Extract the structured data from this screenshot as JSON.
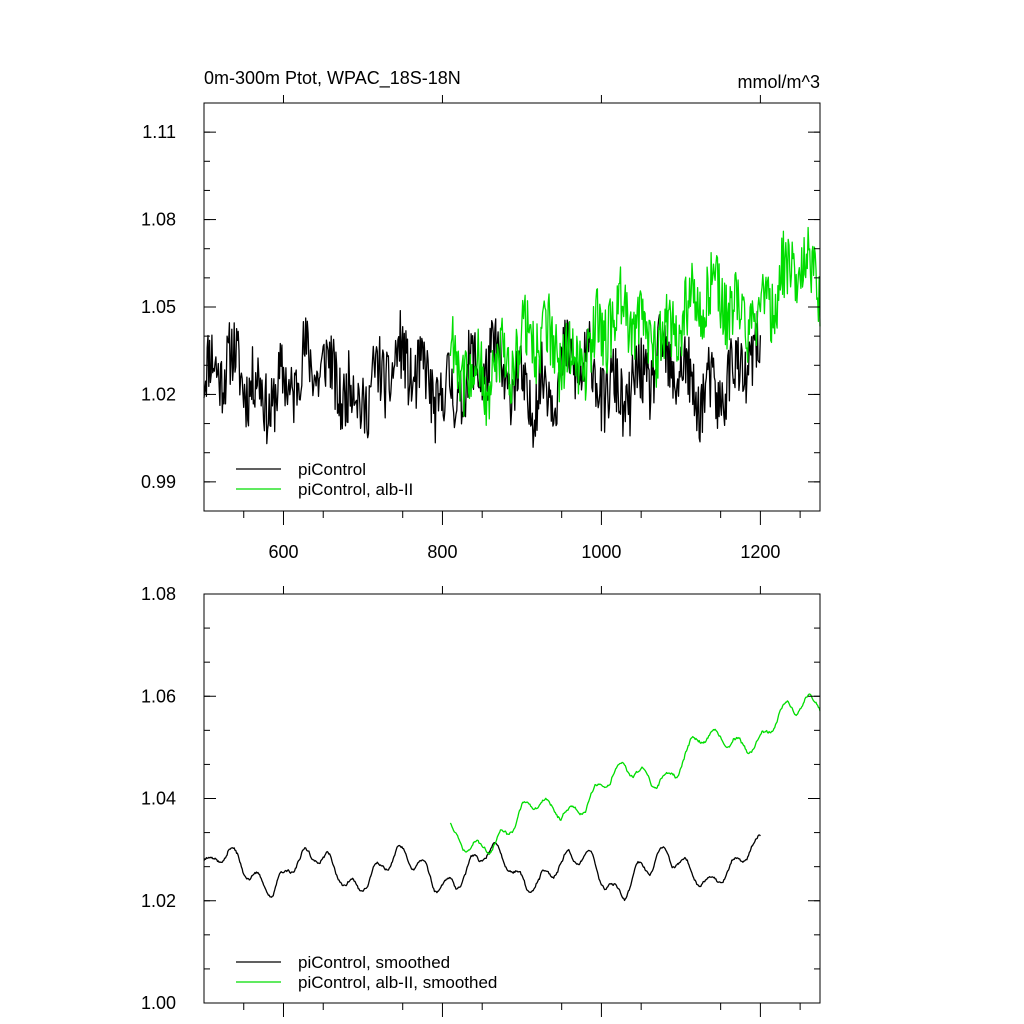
{
  "chart_data": [
    {
      "type": "line",
      "title": "0m-300m Ptot, WPAC_18S-18N",
      "units": "mmol/m^3",
      "xlim": [
        500,
        1275
      ],
      "ylim": [
        0.98,
        1.12
      ],
      "x_ticks": [
        600,
        800,
        1000,
        1200
      ],
      "y_ticks": [
        0.99,
        1.02,
        1.05,
        1.08,
        1.11
      ],
      "y_tick_labels": [
        "0.99",
        "1.02",
        "1.05",
        "1.08",
        "1.11"
      ],
      "legend_position": "bottom-left",
      "legend": [
        "piControl",
        "piControl, alb-II"
      ],
      "series": [
        {
          "name": "piControl",
          "color": "#000000",
          "x_start": 500,
          "x_end": 1200,
          "mean": 1.025,
          "amplitude": 0.012,
          "trend": 0.0,
          "noise": 0.012
        },
        {
          "name": "piControl, alb-II",
          "color": "#00dd00",
          "x_start": 810,
          "x_end": 1275,
          "mean": 1.028,
          "amplitude": 0.012,
          "trend": 0.03,
          "noise": 0.012
        }
      ]
    },
    {
      "type": "line",
      "title": "",
      "xlim": [
        500,
        1275
      ],
      "ylim": [
        1.0,
        1.08
      ],
      "x_ticks": [
        600,
        800,
        1000,
        1200
      ],
      "y_ticks": [
        1.0,
        1.02,
        1.04,
        1.06,
        1.08
      ],
      "y_tick_labels": [
        "1.00",
        "1.02",
        "1.04",
        "1.06",
        "1.08"
      ],
      "legend_position": "bottom-left",
      "legend": [
        "piControl, smoothed",
        "piControl, alb-II, smoothed"
      ],
      "series": [
        {
          "name": "piControl, smoothed",
          "color": "#000000",
          "x_start": 500,
          "x_end": 1200,
          "mean": 1.026,
          "amplitude": 0.007,
          "trend": 0.0,
          "noise": 0.004
        },
        {
          "name": "piControl, alb-II, smoothed",
          "color": "#00dd00",
          "x_start": 810,
          "x_end": 1275,
          "mean": 1.03,
          "amplitude": 0.006,
          "trend": 0.028,
          "noise": 0.004
        }
      ]
    }
  ]
}
